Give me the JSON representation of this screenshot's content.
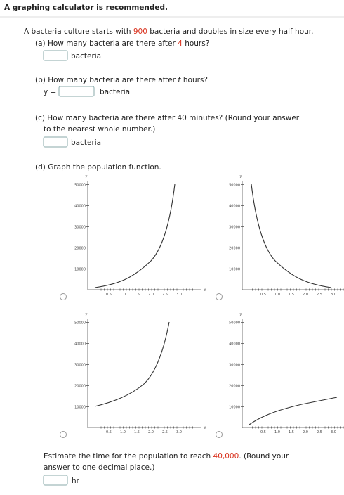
{
  "header": {
    "note": "A graphing calculator is recommended."
  },
  "intro": {
    "before": "A bacteria culture starts with",
    "initial": "900",
    "after": "bacteria and doubles in size every half hour."
  },
  "part_a": {
    "before": "(a) How many bacteria are there after",
    "hours": "4",
    "after": "hours?",
    "unit": "bacteria"
  },
  "part_b": {
    "before": "(b) How many bacteria are there after",
    "variable": "t",
    "after": "hours?",
    "lhs": "y =",
    "unit": "bacteria"
  },
  "part_c": {
    "line1": "(c) How many bacteria are there after 40 minutes? (Round your answer",
    "line2": "to the nearest whole number.)",
    "unit": "bacteria"
  },
  "part_d": {
    "prompt": "(d) Graph the population function.",
    "axes": {
      "y_label": "y",
      "x_label": "t",
      "yticks": [
        "10000",
        "20000",
        "30000",
        "40000",
        "50000"
      ],
      "xticks": [
        "0.5",
        "1.0",
        "1.5",
        "2.0",
        "2.5",
        "3.0"
      ]
    }
  },
  "part_e": {
    "before": "Estimate the time for the population to reach",
    "target": "40,000",
    "after": ". (Round your",
    "line2": "answer to one decimal place.)",
    "unit": "hr"
  }
}
